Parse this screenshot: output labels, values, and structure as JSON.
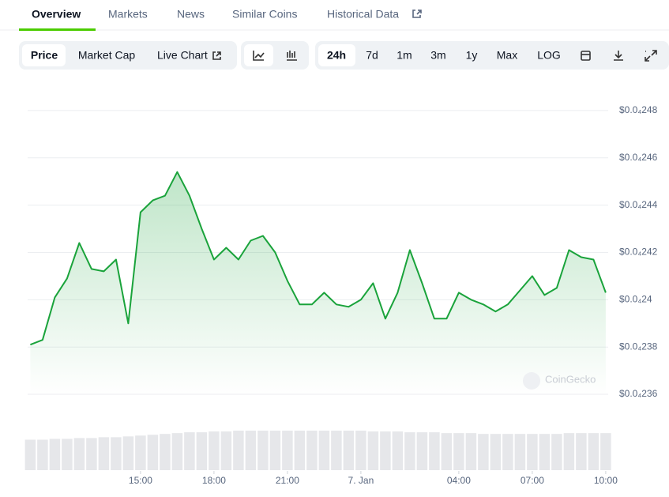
{
  "tabs": [
    "Overview",
    "Markets",
    "News",
    "Similar Coins",
    "Historical Data"
  ],
  "toolbar": {
    "metrics": [
      "Price",
      "Market Cap",
      "Live Chart"
    ],
    "ranges": [
      "24h",
      "7d",
      "1m",
      "3m",
      "1y",
      "Max",
      "LOG"
    ]
  },
  "watermark": "CoinGecko",
  "chart_data": {
    "type": "area",
    "color": "#1aa33b",
    "volume_color": "#e6e7ea",
    "xlim": [
      10.39,
      34.1
    ],
    "xticks": [
      {
        "value": 15,
        "label": "15:00"
      },
      {
        "value": 18,
        "label": "18:00"
      },
      {
        "value": 21,
        "label": "21:00"
      },
      {
        "value": 24,
        "label": "7. Jan"
      },
      {
        "value": 28,
        "label": "04:00"
      },
      {
        "value": 31,
        "label": "07:00"
      },
      {
        "value": 34,
        "label": "10:00"
      }
    ],
    "ylim": [
      2.353e-05,
      2.49e-05
    ],
    "yticks": [
      {
        "value": 2.48e-05,
        "label": "$0.0₄248"
      },
      {
        "value": 2.46e-05,
        "label": "$0.0₄246"
      },
      {
        "value": 2.44e-05,
        "label": "$0.0₄244"
      },
      {
        "value": 2.42e-05,
        "label": "$0.0₄242"
      },
      {
        "value": 2.4e-05,
        "label": "$0.0₄24"
      },
      {
        "value": 2.38e-05,
        "label": "$0.0₄238"
      },
      {
        "value": 2.36e-05,
        "label": "$0.0₄236"
      }
    ],
    "grid": true,
    "x": [
      10.5,
      11,
      11.5,
      12,
      12.5,
      13,
      13.5,
      14,
      14.5,
      15,
      15.5,
      16,
      16.5,
      17,
      17.5,
      18,
      18.5,
      19,
      19.5,
      20,
      20.5,
      21,
      21.5,
      22,
      22.5,
      23,
      23.5,
      24,
      24.5,
      25,
      25.5,
      26,
      26.5,
      27,
      27.5,
      28,
      28.5,
      29,
      29.5,
      30,
      30.5,
      31,
      31.5,
      32,
      32.5,
      33,
      33.5,
      34
    ],
    "values": [
      2.381e-05,
      2.383e-05,
      2.401e-05,
      2.409e-05,
      2.424e-05,
      2.413e-05,
      2.412e-05,
      2.417e-05,
      2.39e-05,
      2.437e-05,
      2.442e-05,
      2.444e-05,
      2.454e-05,
      2.444e-05,
      2.43e-05,
      2.417e-05,
      2.422e-05,
      2.417e-05,
      2.425e-05,
      2.427e-05,
      2.42e-05,
      2.408e-05,
      2.398e-05,
      2.398e-05,
      2.403e-05,
      2.398e-05,
      2.397e-05,
      2.4e-05,
      2.407e-05,
      2.392e-05,
      2.403e-05,
      2.421e-05,
      2.407e-05,
      2.392e-05,
      2.392e-05,
      2.403e-05,
      2.4e-05,
      2.398e-05,
      2.395e-05,
      2.398e-05,
      2.404e-05,
      2.41e-05,
      2.402e-05,
      2.405e-05,
      2.421e-05,
      2.418e-05,
      2.417e-05,
      2.403e-05
    ],
    "volume": [
      37,
      37,
      38,
      38,
      39,
      39,
      40,
      40,
      41,
      42,
      43,
      44,
      45,
      46,
      46,
      47,
      47,
      48,
      48,
      48,
      48,
      48,
      48,
      48,
      48,
      48,
      48,
      48,
      47,
      47,
      47,
      46,
      46,
      46,
      45,
      45,
      45,
      44,
      44,
      44,
      44,
      44,
      44,
      44,
      45,
      45,
      45,
      45
    ]
  }
}
